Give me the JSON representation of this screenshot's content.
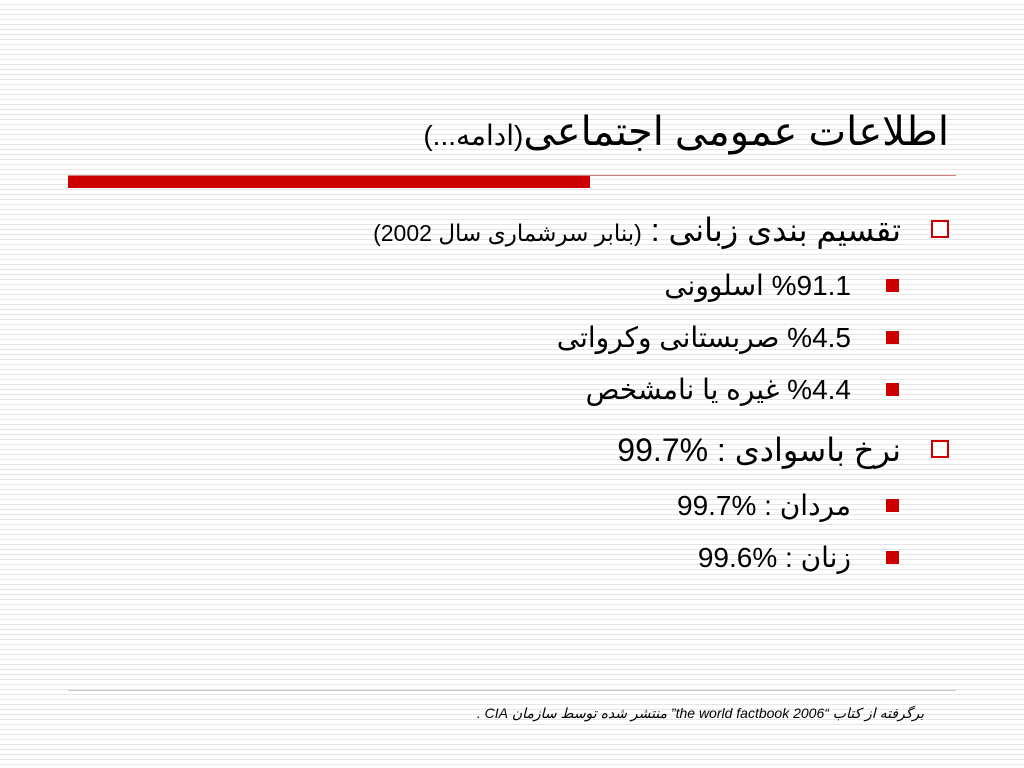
{
  "title": {
    "main": "اطلاعات عمومی اجتماعی",
    "suffix": "(ادامه...)"
  },
  "bullets": [
    {
      "main": "تقسیم بندی زبانی : ",
      "note": "(بنابر سرشماری سال 2002)",
      "sub": [
        "%91.1  اسلوونی",
        "%4.5 صربستانی وکرواتی",
        "%4.4 غیره یا نامشخص"
      ]
    },
    {
      "main": "نرخ باسوادی : %99.7",
      "sub": [
        "مردان : %99.7",
        "زنان : %99.6"
      ]
    }
  ],
  "footer": {
    "source_text": "برگرفته از کتاب “the world factbook 2006” منتشر شده توسط سازمان CIA ."
  },
  "colors": {
    "accent": "#cc0000",
    "rule_line": "#e6e6e6"
  }
}
